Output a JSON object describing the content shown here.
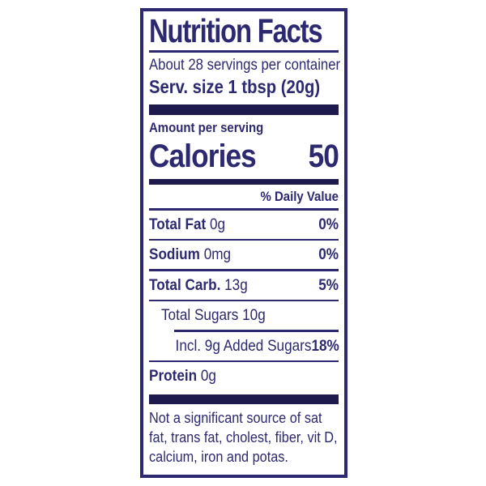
{
  "nutrition_label": {
    "title": "Nutrition Facts",
    "servings_per_container": "About 28 servings per container",
    "serving_size": "Serv. size 1 tbsp (20g)",
    "amount_per_serving": "Amount per serving",
    "calories": {
      "label": "Calories",
      "value": "50"
    },
    "daily_value_header": "% Daily Value",
    "nutrients": [
      {
        "name": "Total Fat",
        "amount": "0g",
        "daily_value": "0%",
        "bold": true,
        "indent": 0,
        "divider_after": "full"
      },
      {
        "name": "Sodium",
        "amount": "0mg",
        "daily_value": "0%",
        "bold": true,
        "indent": 0,
        "divider_after": "full"
      },
      {
        "name": "Total Carb.",
        "amount": "13g",
        "daily_value": "5%",
        "bold": true,
        "indent": 0,
        "divider_after": "full"
      },
      {
        "name": "Total Sugars",
        "amount": "10g",
        "daily_value": "",
        "bold": false,
        "indent": 1,
        "divider_after": "indent"
      },
      {
        "name": "Incl. 9g Added Sugars",
        "amount": "",
        "daily_value": "18%",
        "bold": false,
        "indent": 2,
        "divider_after": "full"
      },
      {
        "name": "Protein",
        "amount": "0g",
        "daily_value": "",
        "bold": true,
        "indent": 0,
        "divider_after": "none"
      }
    ],
    "footnote_lines": [
      "Not a significant source of sat",
      "fat, trans fat, cholest, fiber, vit D,",
      "calcium, iron and potas."
    ],
    "colors": {
      "ink": "#2d2970",
      "bar": "#1e1a4e",
      "background": "#ffffff"
    }
  }
}
